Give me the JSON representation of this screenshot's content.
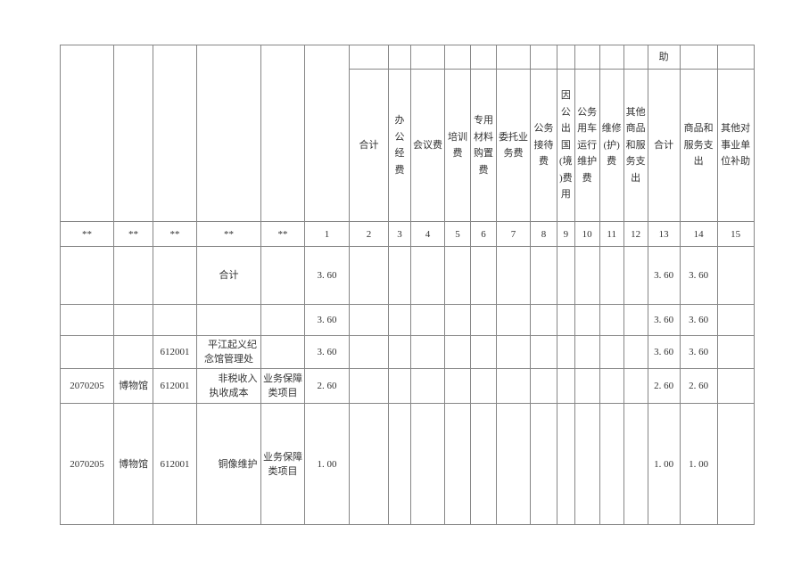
{
  "page": {
    "colors": {
      "background": "#ffffff",
      "border": "#868686",
      "text": "#323232"
    }
  },
  "table": {
    "carryover_label": "助",
    "headers": [
      "合计",
      "办\n公\n经\n费",
      "会议费",
      "培训\n费",
      "专用\n材料\n购置\n费",
      "委托业\n务费",
      "公务\n接待\n费",
      "因\n公\n出\n国\n(境\n)费\n用",
      "公务\n用车\n运行\n维护\n费",
      "维修\n(护)\n费",
      "其他\n商品\n和服\n务支\n出",
      "合计",
      "商品和\n服务支\n出",
      "其他对\n事业单\n位补助"
    ],
    "stars": [
      "**",
      "**",
      "**",
      "**",
      "**"
    ],
    "col_numbers": [
      "1",
      "2",
      "3",
      "4",
      "5",
      "6",
      "7",
      "8",
      "9",
      "10",
      "11",
      "12",
      "13",
      "14",
      "15"
    ],
    "rows": [
      {
        "c4": "合计",
        "c6": "3. 60",
        "c18": "3. 60",
        "c19": "3. 60"
      },
      {
        "c6": "3. 60",
        "c18": "3. 60",
        "c19": "3. 60"
      },
      {
        "c3": "612001",
        "c4": "平江起义纪\n念馆管理处",
        "c6": "3. 60",
        "c18": "3. 60",
        "c19": "3. 60"
      },
      {
        "c1": "2070205",
        "c2": "博物馆",
        "c3": "612001",
        "c4": "非税收入\n执收成本",
        "c5": "业务保障\n类项目",
        "c6": "2. 60",
        "c18": "2. 60",
        "c19": "2. 60"
      },
      {
        "c1": "2070205",
        "c2": "博物馆",
        "c3": "612001",
        "c4": "铜像维护",
        "c5": "业务保障\n类项目",
        "c6": "1. 00",
        "c18": "1. 00",
        "c19": "1. 00"
      }
    ]
  }
}
